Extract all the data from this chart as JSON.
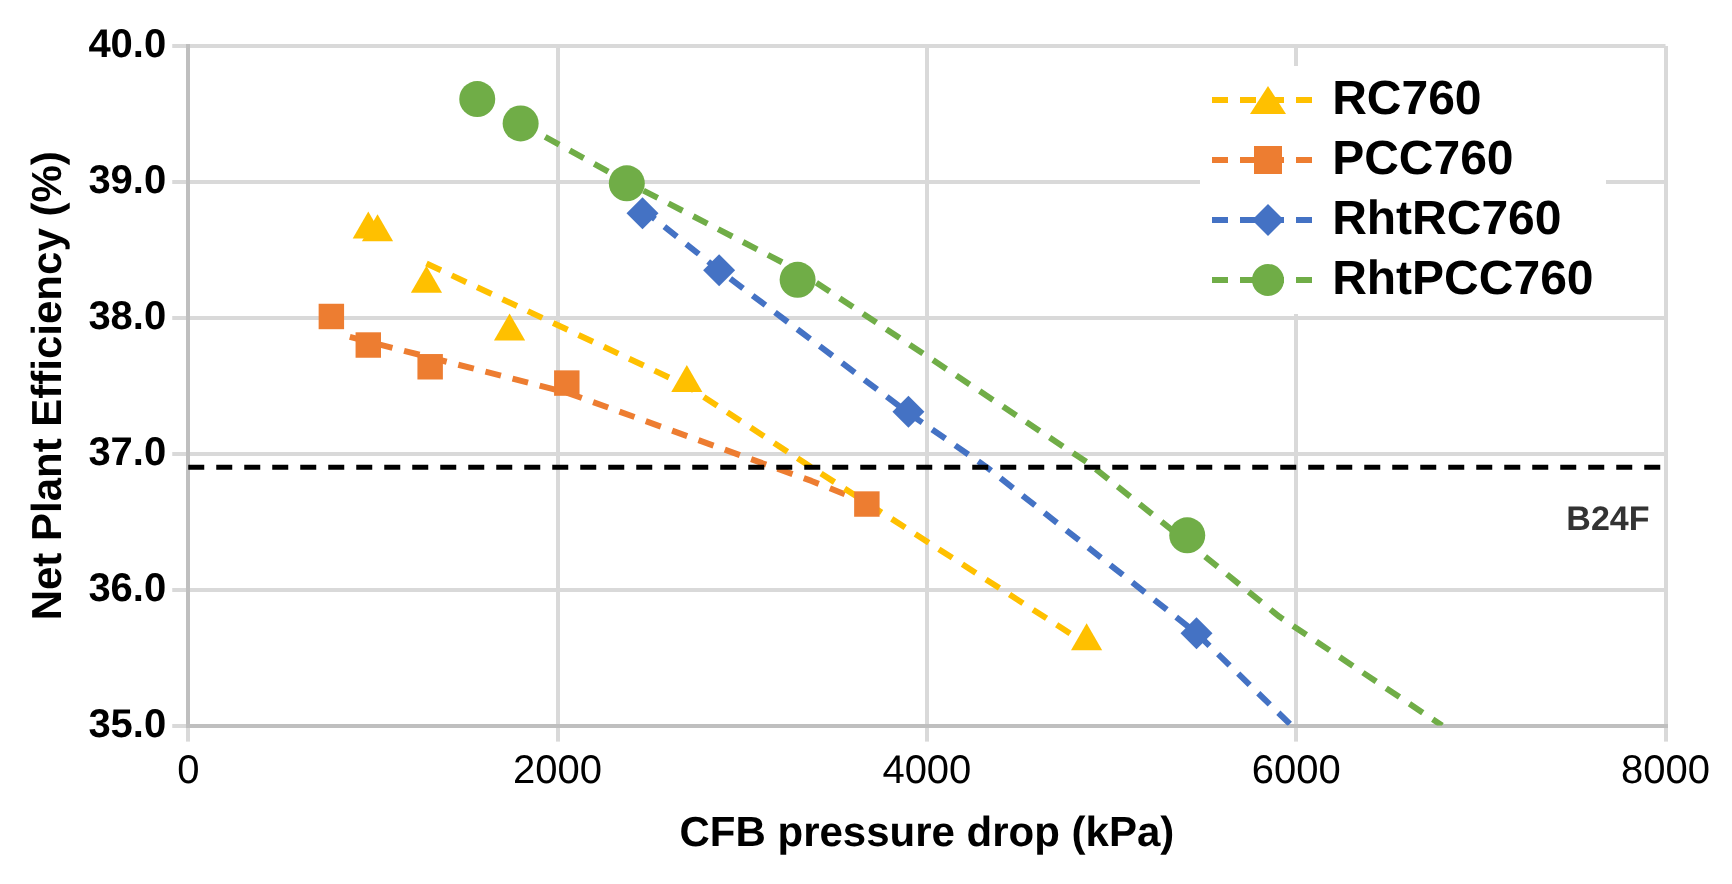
{
  "chart_data": {
    "type": "scatter",
    "xlabel": "CFB pressure drop (kPa)",
    "ylabel": "Net Plant Efficiency (%)",
    "xlim": [
      0,
      8000
    ],
    "xticks": [
      0,
      2000,
      4000,
      6000,
      8000
    ],
    "ylim": [
      35,
      40
    ],
    "yticks": [
      {
        "value": 35,
        "label": "35.0"
      },
      {
        "value": 36,
        "label": "36.0"
      },
      {
        "value": 37,
        "label": "37.0"
      },
      {
        "value": 38,
        "label": "38.0"
      },
      {
        "value": 39,
        "label": "39.0"
      },
      {
        "value": 40,
        "label": "40.0"
      }
    ],
    "grid": true,
    "legend": "top right",
    "series": [
      {
        "name": "RC760",
        "marker": "triangle",
        "color": "#ffc000",
        "x": [
          975,
          1025,
          1290,
          1740,
          2700,
          4865
        ],
        "values": [
          38.65,
          38.63,
          38.25,
          37.9,
          37.52,
          35.62
        ]
      },
      {
        "name": "PCC760",
        "marker": "square",
        "color": "#ed7d31",
        "x": [
          775,
          975,
          1310,
          2050,
          3675
        ],
        "values": [
          38.01,
          37.8,
          37.64,
          37.52,
          36.63
        ]
      },
      {
        "name": "RhtRC760",
        "marker": "diamond",
        "color": "#4472c4",
        "x": [
          2460,
          2875,
          3900,
          5460
        ],
        "values": [
          38.77,
          38.35,
          37.31,
          35.68
        ]
      },
      {
        "name": "RhtPCC760",
        "marker": "circle",
        "color": "#70ad47",
        "x": [
          1565,
          1800,
          2375,
          3300,
          5410
        ],
        "values": [
          39.61,
          39.43,
          38.99,
          38.28,
          36.4
        ]
      },
      {
        "type": "line",
        "marker": "none",
        "line_style": "dashed",
        "color": "#ffc000",
        "x": [
          1290,
          2700,
          3375,
          4865
        ],
        "values": [
          38.4,
          37.5,
          36.9,
          35.6
        ]
      },
      {
        "type": "line",
        "marker": "none",
        "line_style": "dashed",
        "color": "#ed7d31",
        "x": [
          875,
          2050,
          3375,
          3650
        ],
        "values": [
          37.86,
          37.45,
          36.8,
          36.65
        ]
      },
      {
        "type": "line",
        "marker": "none",
        "line_style": "dashed",
        "color": "#4472c4",
        "x": [
          2460,
          2875,
          3900,
          4325,
          5460,
          5975
        ],
        "values": [
          38.8,
          38.35,
          37.3,
          36.9,
          35.68,
          35.0
        ]
      },
      {
        "type": "line",
        "marker": "none",
        "line_style": "dashed",
        "color": "#70ad47",
        "x": [
          1800,
          2375,
          3300,
          4875,
          5410,
          5910,
          6790
        ],
        "values": [
          39.43,
          39.0,
          38.35,
          36.93,
          36.35,
          35.8,
          35.0
        ]
      }
    ],
    "ref_lines": [
      {
        "axis": "y",
        "value": 36.9,
        "label": "B24F",
        "color": "#000000",
        "line_style": "dashed"
      }
    ]
  }
}
